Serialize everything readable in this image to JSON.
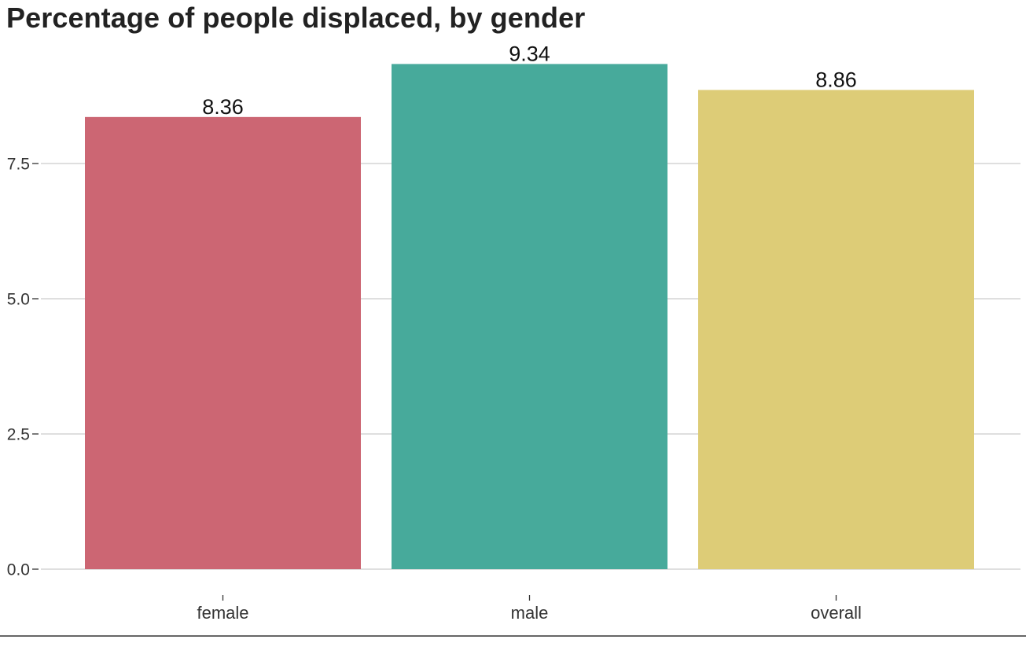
{
  "chart_data": {
    "type": "bar",
    "title": "Percentage of people displaced, by gender",
    "xlabel": "",
    "ylabel": "",
    "categories": [
      "female",
      "male",
      "overall"
    ],
    "values": [
      8.36,
      9.34,
      8.86
    ],
    "value_labels": [
      "8.36",
      "9.34",
      "8.86"
    ],
    "colors": [
      "#cc6673",
      "#47aa9b",
      "#ddcc77"
    ],
    "ylim": [
      0,
      9.6
    ],
    "yticks": [
      0,
      2.5,
      5,
      7.5
    ],
    "ytick_labels": [
      "0.0",
      "2.5",
      "5.0",
      "7.5"
    ],
    "grid": "horizontal",
    "legend": "none"
  }
}
